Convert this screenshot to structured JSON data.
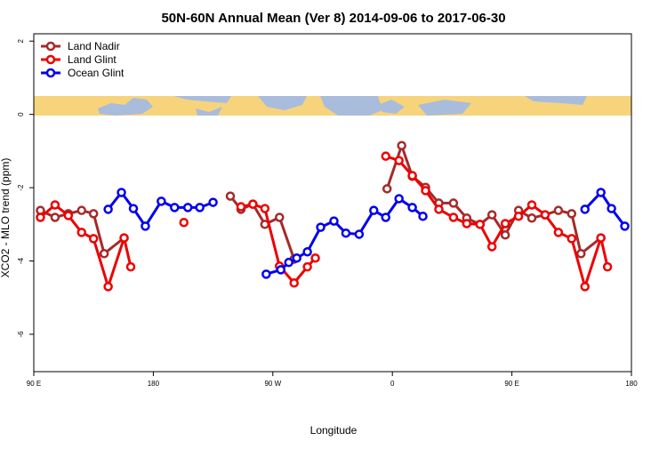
{
  "chart_data": {
    "type": "line",
    "title": "50N-60N Annual Mean (Ver 8)   2014-09-06 to 2017-06-30",
    "x_label": "Longitude",
    "y_label": "XCO2 - MLO trend (ppm)",
    "xlim": [
      90,
      540
    ],
    "xticks": [
      {
        "value": 90,
        "label": "90 E"
      },
      180,
      {
        "value": 270,
        "label": "90 W"
      },
      {
        "value": 360,
        "label": "0"
      },
      {
        "value": 450,
        "label": "90 E"
      },
      {
        "value": 540,
        "label": "180"
      }
    ],
    "ylim": [
      -7.02,
      2.2
    ],
    "yticks": [
      2,
      0,
      -2,
      -4,
      -6
    ],
    "legend": "top-left",
    "series": [
      {
        "name": "Land Nadir",
        "color": "#a52a2a",
        "x": [
          95,
          106,
          116,
          126,
          135,
          143,
          158,
          null,
          238,
          246,
          255,
          264,
          275,
          286,
          null,
          356,
          367,
          375,
          385,
          395,
          406,
          416,
          426,
          435,
          445,
          455,
          465,
          475,
          485,
          495,
          502,
          517
        ],
        "values": [
          -2.62,
          -2.81,
          -2.71,
          -2.62,
          -2.71,
          -3.8,
          -3.37,
          null,
          -2.23,
          -2.59,
          -2.45,
          -3.0,
          -2.81,
          -3.95,
          null,
          -2.03,
          -0.85,
          -1.69,
          -1.99,
          -2.42,
          -2.42,
          -2.83,
          -3.0,
          -2.74,
          -3.29,
          -2.62,
          -2.83,
          -2.74,
          -2.62,
          -2.71,
          -3.8,
          -3.37
        ]
      },
      {
        "name": "Land Glint",
        "color": "#ee0000",
        "x": [
          95,
          106,
          116,
          126,
          135,
          146,
          158,
          163,
          null,
          203,
          null,
          246,
          255,
          264,
          275,
          286,
          296,
          302,
          null,
          355,
          365,
          375,
          385,
          395,
          406,
          416,
          426,
          435,
          445,
          455,
          465,
          475,
          485,
          495,
          505,
          517,
          522
        ],
        "values": [
          -2.81,
          -2.47,
          -2.76,
          -3.22,
          -3.39,
          -4.7,
          -3.37,
          -4.16,
          null,
          -2.95,
          null,
          -2.52,
          -2.45,
          -2.57,
          -4.14,
          -4.6,
          -4.16,
          -3.92,
          null,
          -1.14,
          -1.26,
          -1.67,
          -2.08,
          -2.59,
          -2.81,
          -2.98,
          -3.0,
          -3.61,
          -2.98,
          -2.78,
          -2.47,
          -2.74,
          -3.22,
          -3.39,
          -4.7,
          -3.37,
          -4.16
        ]
      },
      {
        "name": "Ocean Glint",
        "color": "#0000ee",
        "x": [
          146,
          156,
          165,
          174,
          186,
          196,
          206,
          215,
          225,
          null,
          265,
          276,
          282,
          288,
          296,
          306,
          316,
          325,
          335,
          346,
          355,
          365,
          375,
          383,
          null,
          505,
          517,
          525,
          535
        ],
        "values": [
          -2.59,
          -2.13,
          -2.57,
          -3.05,
          -2.37,
          -2.54,
          -2.54,
          -2.54,
          -2.4,
          null,
          -4.36,
          -4.24,
          -4.04,
          -3.92,
          -3.75,
          -3.08,
          -2.91,
          -3.24,
          -3.27,
          -2.62,
          -2.81,
          -2.3,
          -2.54,
          -2.78,
          null,
          -2.59,
          -2.13,
          -2.57,
          -3.05
        ]
      }
    ]
  }
}
